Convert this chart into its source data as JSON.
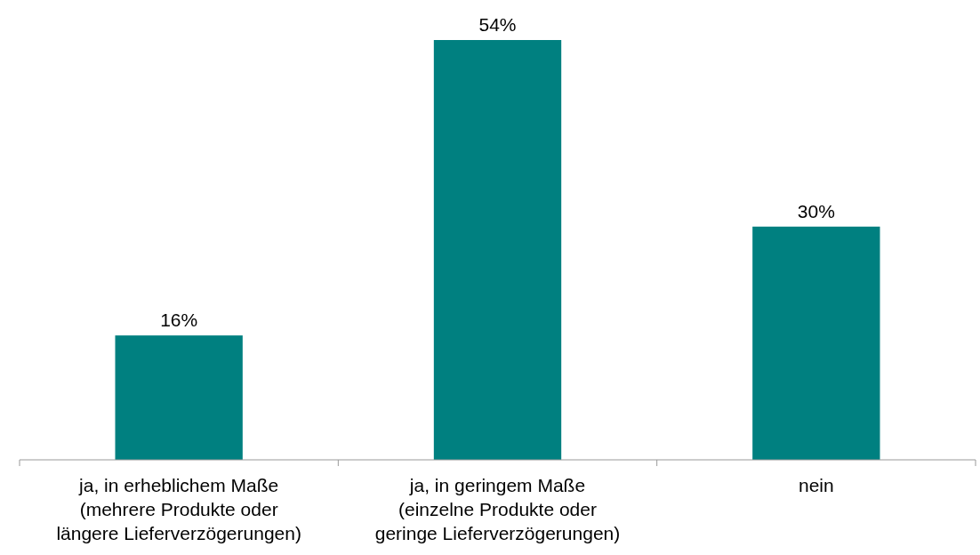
{
  "chart_data": {
    "type": "bar",
    "categories": [
      "ja, in erheblichem Maße\n(mehrere Produkte oder\nlängere Lieferverzögerungen)",
      "ja, in geringem Maße\n(einzelne Produkte oder\ngeringe Lieferverzögerungen)",
      "nein"
    ],
    "values": [
      16,
      54,
      30
    ],
    "value_labels": [
      "16%",
      "54%",
      "30%"
    ],
    "color": "#008080"
  }
}
